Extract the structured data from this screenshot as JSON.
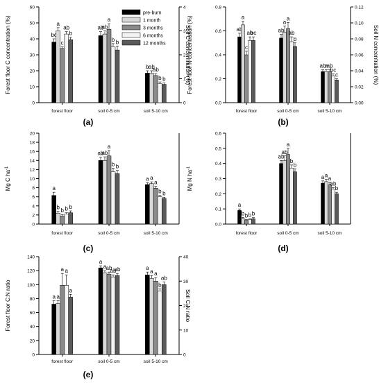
{
  "legend": {
    "entries": [
      {
        "label": "pre-burn",
        "color": "#000000"
      },
      {
        "label": "1 month",
        "color": "#d8d8d8"
      },
      {
        "label": "3 months",
        "color": "#8a8a8a"
      },
      {
        "label": "6 months",
        "color": "#f4f4f4"
      },
      {
        "label": "12 months",
        "color": "#5a5a5a"
      }
    ]
  },
  "chart_data": [
    {
      "panel": "(a)",
      "type": "bar",
      "categories": [
        "forest floor",
        "soil 0-5 cm",
        "soil 5-10 cm"
      ],
      "ylabel": "Forest floor C concentration (%)",
      "y2label": "Soil C concentration (%)",
      "ylim": [
        0,
        60
      ],
      "yticks": [
        0,
        10,
        20,
        30,
        40,
        50,
        60
      ],
      "y2lim": [
        0,
        4
      ],
      "y2ticks": [
        0,
        1,
        2,
        3,
        4
      ],
      "series": [
        {
          "values": [
            38,
            42,
            18.5
          ],
          "errors": [
            2,
            2.5,
            1.5
          ]
        },
        {
          "values": [
            45,
            43,
            18.5
          ],
          "errors": [
            2,
            2,
            1.5
          ]
        },
        {
          "values": [
            34,
            46,
            17
          ],
          "errors": [
            1,
            3.5,
            1.2
          ]
        },
        {
          "values": [
            43,
            35,
            12
          ],
          "errors": [
            1.5,
            2,
            1
          ]
        },
        {
          "values": [
            39.5,
            33,
            11.5
          ],
          "errors": [
            1.5,
            2.5,
            0.8
          ]
        }
      ],
      "letters": [
        [
          "bc",
          "ab",
          "b"
        ],
        [
          "a",
          "ab",
          "ab"
        ],
        [
          "c",
          "a",
          "ab"
        ],
        [
          "ab",
          "b",
          "b"
        ],
        [
          "b",
          "b",
          "b"
        ]
      ]
    },
    {
      "panel": "(b)",
      "type": "bar",
      "categories": [
        "forest floor",
        "soil 0-5 cm",
        "soil 5-10 cm"
      ],
      "ylabel": "Forest floor N concentration (%)",
      "y2label": "Soil N concentration (%)",
      "ylim": [
        0,
        0.8
      ],
      "yticks": [
        "0.0",
        "0.2",
        "0.4",
        "0.6",
        "0.8"
      ],
      "y2lim": [
        0,
        0.12
      ],
      "y2ticks": [
        "0.00",
        "0.02",
        "0.04",
        "0.06",
        "0.08",
        "0.10",
        "0.12"
      ],
      "series": [
        {
          "values": [
            0.55,
            0.54,
            0.26
          ],
          "errors": [
            0.03,
            0.03,
            0.015
          ]
        },
        {
          "values": [
            0.65,
            0.59,
            0.26
          ],
          "errors": [
            0.03,
            0.05,
            0.015
          ]
        },
        {
          "values": [
            0.4,
            0.62,
            0.26
          ],
          "errors": [
            0.03,
            0.05,
            0.015
          ]
        },
        {
          "values": [
            0.52,
            0.51,
            0.225
          ],
          "errors": [
            0.03,
            0.04,
            0.015
          ]
        },
        {
          "values": [
            0.52,
            0.47,
            0.19
          ],
          "errors": [
            0.03,
            0.03,
            0.01
          ]
        }
      ],
      "letters": [
        [
          "ab",
          "ab",
          "ab"
        ],
        [
          "a",
          "a",
          "a"
        ],
        [
          "c",
          "a",
          "ab"
        ],
        [
          "ab",
          "ab",
          "bc"
        ],
        [
          "bc",
          "b",
          "c"
        ]
      ]
    },
    {
      "panel": "(c)",
      "type": "bar",
      "categories": [
        "forest floor",
        "soil 0-5 cm",
        "soil 5-10 cm"
      ],
      "ylabel": "Mg C ha-1",
      "ylim": [
        0,
        20
      ],
      "yticks": [
        0,
        2,
        4,
        6,
        8,
        10,
        12,
        14,
        16,
        18,
        20
      ],
      "series": [
        {
          "values": [
            6.3,
            14,
            8.7
          ],
          "errors": [
            0.7,
            0.7,
            0.4
          ]
        },
        {
          "values": [
            2.4,
            14,
            8.9
          ],
          "errors": [
            0.4,
            0.8,
            0.4
          ]
        },
        {
          "values": [
            1.8,
            15,
            7.9
          ],
          "errors": [
            0.3,
            1.2,
            0.4
          ]
        },
        {
          "values": [
            2.2,
            11.5,
            6.0
          ],
          "errors": [
            0.3,
            0.8,
            0.3
          ]
        },
        {
          "values": [
            2.5,
            11.1,
            5.6
          ],
          "errors": [
            0.4,
            0.7,
            0.3
          ]
        }
      ],
      "letters": [
        [
          "a",
          "ab",
          "a"
        ],
        [
          "b",
          "ab",
          "a"
        ],
        [
          "b",
          "a",
          "a"
        ],
        [
          "b",
          "b",
          "b"
        ],
        [
          "b",
          "b",
          "b"
        ]
      ]
    },
    {
      "panel": "(d)",
      "type": "bar",
      "categories": [
        "forest floor",
        "soil 0-5 cm",
        "soil 5-10 cm"
      ],
      "ylabel": "Mg N ha-1",
      "ylim": [
        0,
        0.6
      ],
      "yticks": [
        "0.0",
        "0.1",
        "0.2",
        "0.3",
        "0.4",
        "0.5",
        "0.6"
      ],
      "series": [
        {
          "values": [
            0.09,
            0.4,
            0.27
          ],
          "errors": [
            0.01,
            0.02,
            0.015
          ]
        },
        {
          "values": [
            0.035,
            0.42,
            0.28
          ],
          "errors": [
            0.008,
            0.03,
            0.015
          ]
        },
        {
          "values": [
            0.025,
            0.46,
            0.26
          ],
          "errors": [
            0.005,
            0.04,
            0.015
          ]
        },
        {
          "values": [
            0.03,
            0.37,
            0.23
          ],
          "errors": [
            0.005,
            0.02,
            0.01
          ]
        },
        {
          "values": [
            0.035,
            0.345,
            0.2
          ],
          "errors": [
            0.008,
            0.02,
            0.01
          ]
        }
      ],
      "letters": [
        [
          "a",
          "ab",
          "a"
        ],
        [
          "b",
          "ab",
          "a"
        ],
        [
          "b",
          "a",
          "a"
        ],
        [
          "b",
          "b",
          "ab"
        ],
        [
          "b",
          "b",
          "b"
        ]
      ]
    },
    {
      "panel": "(e)",
      "type": "bar",
      "categories": [
        "forest floor",
        "soil 0-5 cm",
        "soil 5-10 cm"
      ],
      "ylabel": "Forest floor C:N ratio",
      "y2label": "Soil C:N ratio",
      "ylim": [
        0,
        140
      ],
      "yticks": [
        0,
        20,
        40,
        60,
        80,
        100,
        120,
        140
      ],
      "y2lim": [
        0,
        40
      ],
      "y2ticks": [
        0,
        10,
        20,
        30,
        40
      ],
      "series": [
        {
          "values": [
            72,
            124,
            114
          ],
          "errors": [
            5,
            3,
            4
          ]
        },
        {
          "values": [
            73,
            117,
            109
          ],
          "errors": [
            4,
            3,
            4
          ]
        },
        {
          "values": [
            99,
            115,
            105
          ],
          "errors": [
            17,
            3,
            5
          ]
        },
        {
          "values": [
            99,
            111,
            91
          ],
          "errors": [
            15,
            3,
            3
          ]
        },
        {
          "values": [
            82,
            113,
            100
          ],
          "errors": [
            4,
            3,
            4
          ]
        }
      ],
      "letters": [
        [
          "a",
          "a",
          "a"
        ],
        [
          "a",
          "a",
          "a"
        ],
        [
          "a",
          "ab",
          "a"
        ],
        [
          "a",
          "ab",
          "b"
        ],
        [
          "a",
          "ab",
          "ab"
        ]
      ]
    }
  ]
}
